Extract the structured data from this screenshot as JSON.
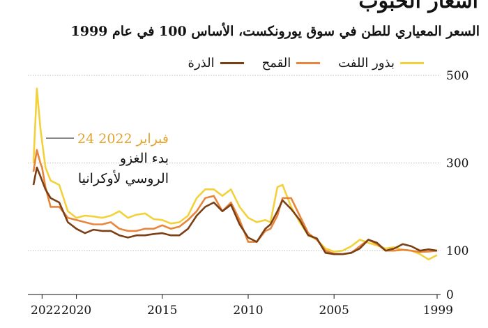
{
  "chart_data": {
    "type": "line",
    "title": "أسعار الحبوب",
    "subtitle": "السعر المعياري للطن في سوق يورونكست، الأساس 100 في عام 1999",
    "xlabel": "",
    "ylabel": "",
    "x_ticks": [
      "1999",
      "2005",
      "2010",
      "2015",
      "2020",
      "2022"
    ],
    "y_ticks": [
      "0",
      "100",
      "300",
      "500"
    ],
    "xlim": [
      1999.0,
      2022.5
    ],
    "ylim": [
      0,
      500
    ],
    "grid": true,
    "legend_position": "top",
    "annotation": {
      "date": "24 فبراير 2022",
      "line1": "بدء الغزو",
      "line2": "الروسي لأوكرانيا"
    },
    "series": [
      {
        "name": "بذور اللفت",
        "color": "#f2d13a",
        "x": [
          1999.0,
          1999.5,
          2000.0,
          2000.5,
          2001.0,
          2001.5,
          2002.0,
          2002.5,
          2003.0,
          2003.5,
          2004.0,
          2004.5,
          2005.0,
          2005.5,
          2006.0,
          2006.5,
          2007.0,
          2007.5,
          2008.0,
          2008.3,
          2008.7,
          2009.0,
          2009.5,
          2010.0,
          2010.5,
          2011.0,
          2011.5,
          2012.0,
          2012.5,
          2013.0,
          2013.5,
          2014.0,
          2014.5,
          2015.0,
          2015.5,
          2016.0,
          2016.5,
          2017.0,
          2017.5,
          2018.0,
          2018.5,
          2019.0,
          2019.5,
          2020.0,
          2020.5,
          2021.0,
          2021.5,
          2021.8,
          2022.0,
          2022.1,
          2022.3,
          2022.5
        ],
        "values": [
          90,
          80,
          92,
          100,
          102,
          108,
          105,
          112,
          118,
          125,
          110,
          100,
          98,
          105,
          125,
          135,
          165,
          200,
          250,
          245,
          165,
          170,
          165,
          175,
          200,
          240,
          225,
          240,
          240,
          220,
          180,
          165,
          162,
          170,
          172,
          185,
          182,
          175,
          190,
          180,
          175,
          178,
          180,
          175,
          190,
          250,
          260,
          290,
          350,
          380,
          470,
          300
        ]
      },
      {
        "name": "القمح",
        "color": "#e8853a",
        "x": [
          1999.0,
          1999.5,
          2000.0,
          2000.5,
          2001.0,
          2001.5,
          2002.0,
          2002.5,
          2003.0,
          2003.5,
          2004.0,
          2004.5,
          2005.0,
          2005.5,
          2006.0,
          2006.5,
          2007.0,
          2007.5,
          2008.0,
          2008.3,
          2008.7,
          2009.0,
          2009.5,
          2010.0,
          2010.5,
          2011.0,
          2011.5,
          2012.0,
          2012.5,
          2013.0,
          2013.5,
          2014.0,
          2014.5,
          2015.0,
          2015.5,
          2016.0,
          2016.5,
          2017.0,
          2017.5,
          2018.0,
          2018.5,
          2019.0,
          2019.5,
          2020.0,
          2020.5,
          2021.0,
          2021.5,
          2021.8,
          2022.0,
          2022.1,
          2022.3,
          2022.5
        ],
        "values": [
          100,
          98,
          97,
          100,
          102,
          100,
          100,
          115,
          125,
          110,
          95,
          92,
          93,
          100,
          125,
          140,
          180,
          220,
          220,
          180,
          150,
          145,
          120,
          120,
          170,
          210,
          190,
          225,
          220,
          190,
          170,
          155,
          150,
          158,
          150,
          150,
          145,
          145,
          150,
          165,
          160,
          160,
          165,
          170,
          175,
          200,
          200,
          245,
          290,
          300,
          330,
          280
        ]
      },
      {
        "name": "الذرة",
        "color": "#7a3f14",
        "x": [
          1999.0,
          1999.5,
          2000.0,
          2000.5,
          2001.0,
          2001.5,
          2002.0,
          2002.5,
          2003.0,
          2003.5,
          2004.0,
          2004.5,
          2005.0,
          2005.5,
          2006.0,
          2006.5,
          2007.0,
          2007.5,
          2008.0,
          2008.3,
          2008.7,
          2009.0,
          2009.5,
          2010.0,
          2010.5,
          2011.0,
          2011.5,
          2012.0,
          2012.5,
          2013.0,
          2013.5,
          2014.0,
          2014.5,
          2015.0,
          2015.5,
          2016.0,
          2016.5,
          2017.0,
          2017.5,
          2018.0,
          2018.5,
          2019.0,
          2019.5,
          2020.0,
          2020.5,
          2021.0,
          2021.5,
          2021.8,
          2022.0,
          2022.1,
          2022.3,
          2022.5
        ],
        "values": [
          100,
          103,
          100,
          110,
          115,
          105,
          100,
          118,
          125,
          105,
          95,
          92,
          92,
          95,
          128,
          135,
          170,
          195,
          215,
          190,
          160,
          150,
          120,
          130,
          160,
          205,
          190,
          210,
          200,
          180,
          150,
          135,
          135,
          140,
          138,
          135,
          135,
          130,
          135,
          145,
          145,
          148,
          140,
          150,
          165,
          210,
          220,
          240,
          260,
          270,
          290,
          250
        ]
      }
    ]
  }
}
